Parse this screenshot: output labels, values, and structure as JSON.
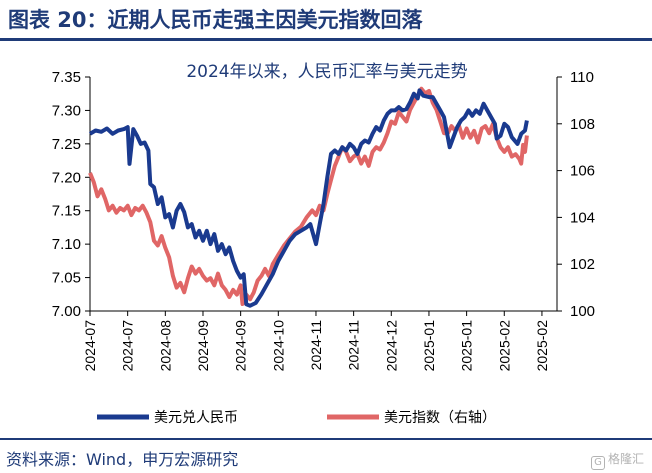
{
  "header": {
    "title": "图表 20：近期人民币走强主因美元指数回落",
    "source": "资料来源：Wind，申万宏源研究",
    "watermark": "格隆汇",
    "watermark_glyph": "G"
  },
  "chart_data": {
    "type": "line",
    "title": "2024年以来，人民币汇率与美元走势",
    "x_tick_labels": [
      "2024-07",
      "2024-07",
      "2024-08",
      "2024-09",
      "2024-09",
      "2024-10",
      "2024-11",
      "2024-11",
      "2024-12",
      "2025-01",
      "2025-01",
      "2025-02",
      "2025-02"
    ],
    "x_range": [
      0,
      12.4
    ],
    "y_left": {
      "range": [
        7.0,
        7.35
      ],
      "ticks": [
        "7.00",
        "7.05",
        "7.10",
        "7.15",
        "7.20",
        "7.25",
        "7.30",
        "7.35"
      ]
    },
    "y_right": {
      "range": [
        100,
        110
      ],
      "ticks": [
        "100",
        "102",
        "104",
        "106",
        "108",
        "110"
      ]
    },
    "grid": false,
    "legend_position": "bottom",
    "series": [
      {
        "name": "美元兑人民币",
        "axis": "left",
        "color": "#1a3a8f",
        "points": [
          [
            0.0,
            7.265
          ],
          [
            0.15,
            7.27
          ],
          [
            0.3,
            7.268
          ],
          [
            0.45,
            7.273
          ],
          [
            0.6,
            7.265
          ],
          [
            0.75,
            7.27
          ],
          [
            0.9,
            7.272
          ],
          [
            1.0,
            7.275
          ],
          [
            1.05,
            7.22
          ],
          [
            1.15,
            7.272
          ],
          [
            1.25,
            7.262
          ],
          [
            1.35,
            7.25
          ],
          [
            1.45,
            7.252
          ],
          [
            1.55,
            7.24
          ],
          [
            1.6,
            7.19
          ],
          [
            1.7,
            7.185
          ],
          [
            1.8,
            7.16
          ],
          [
            1.9,
            7.17
          ],
          [
            2.0,
            7.14
          ],
          [
            2.1,
            7.145
          ],
          [
            2.2,
            7.125
          ],
          [
            2.3,
            7.15
          ],
          [
            2.4,
            7.16
          ],
          [
            2.5,
            7.148
          ],
          [
            2.6,
            7.125
          ],
          [
            2.7,
            7.13
          ],
          [
            2.8,
            7.11
          ],
          [
            2.9,
            7.12
          ],
          [
            3.0,
            7.105
          ],
          [
            3.1,
            7.12
          ],
          [
            3.2,
            7.1
          ],
          [
            3.3,
            7.115
          ],
          [
            3.4,
            7.09
          ],
          [
            3.5,
            7.1
          ],
          [
            3.6,
            7.085
          ],
          [
            3.7,
            7.095
          ],
          [
            3.8,
            7.075
          ],
          [
            3.9,
            7.06
          ],
          [
            4.0,
            7.05
          ],
          [
            4.08,
            7.055
          ],
          [
            4.15,
            7.01
          ],
          [
            4.25,
            7.008
          ],
          [
            4.4,
            7.012
          ],
          [
            4.55,
            7.025
          ],
          [
            4.7,
            7.04
          ],
          [
            4.85,
            7.055
          ],
          [
            5.0,
            7.075
          ],
          [
            5.15,
            7.09
          ],
          [
            5.3,
            7.105
          ],
          [
            5.45,
            7.115
          ],
          [
            5.6,
            7.12
          ],
          [
            5.75,
            7.125
          ],
          [
            5.85,
            7.13
          ],
          [
            5.95,
            7.11
          ],
          [
            6.0,
            7.1
          ],
          [
            6.1,
            7.13
          ],
          [
            6.2,
            7.16
          ],
          [
            6.3,
            7.2
          ],
          [
            6.4,
            7.235
          ],
          [
            6.5,
            7.24
          ],
          [
            6.6,
            7.235
          ],
          [
            6.7,
            7.245
          ],
          [
            6.8,
            7.24
          ],
          [
            6.9,
            7.25
          ],
          [
            7.0,
            7.245
          ],
          [
            7.1,
            7.235
          ],
          [
            7.2,
            7.25
          ],
          [
            7.3,
            7.255
          ],
          [
            7.4,
            7.252
          ],
          [
            7.5,
            7.265
          ],
          [
            7.6,
            7.275
          ],
          [
            7.7,
            7.27
          ],
          [
            7.8,
            7.285
          ],
          [
            7.9,
            7.295
          ],
          [
            8.0,
            7.3
          ],
          [
            8.1,
            7.3
          ],
          [
            8.2,
            7.305
          ],
          [
            8.3,
            7.3
          ],
          [
            8.4,
            7.302
          ],
          [
            8.5,
            7.312
          ],
          [
            8.6,
            7.325
          ],
          [
            8.7,
            7.318
          ],
          [
            8.75,
            7.33
          ],
          [
            8.85,
            7.322
          ],
          [
            9.0,
            7.32
          ],
          [
            9.1,
            7.32
          ],
          [
            9.2,
            7.31
          ],
          [
            9.3,
            7.3
          ],
          [
            9.4,
            7.29
          ],
          [
            9.55,
            7.245
          ],
          [
            9.65,
            7.26
          ],
          [
            9.75,
            7.275
          ],
          [
            9.85,
            7.285
          ],
          [
            9.95,
            7.29
          ],
          [
            10.05,
            7.3
          ],
          [
            10.15,
            7.292
          ],
          [
            10.25,
            7.3
          ],
          [
            10.35,
            7.295
          ],
          [
            10.45,
            7.31
          ],
          [
            10.55,
            7.3
          ],
          [
            10.65,
            7.29
          ],
          [
            10.75,
            7.28
          ],
          [
            10.8,
            7.258
          ],
          [
            10.9,
            7.262
          ],
          [
            11.0,
            7.28
          ],
          [
            11.1,
            7.275
          ],
          [
            11.2,
            7.26
          ],
          [
            11.35,
            7.25
          ],
          [
            11.45,
            7.265
          ],
          [
            11.55,
            7.27
          ],
          [
            11.6,
            7.285
          ]
        ]
      },
      {
        "name": "美元指数（右轴）",
        "axis": "right",
        "color": "#e06666",
        "points": [
          [
            0.0,
            105.9
          ],
          [
            0.1,
            105.5
          ],
          [
            0.2,
            104.9
          ],
          [
            0.3,
            105.2
          ],
          [
            0.4,
            104.8
          ],
          [
            0.5,
            104.3
          ],
          [
            0.6,
            104.5
          ],
          [
            0.7,
            104.2
          ],
          [
            0.8,
            104.4
          ],
          [
            0.9,
            104.3
          ],
          [
            1.0,
            104.5
          ],
          [
            1.1,
            104.1
          ],
          [
            1.2,
            104.4
          ],
          [
            1.3,
            104.3
          ],
          [
            1.4,
            104.5
          ],
          [
            1.5,
            104.2
          ],
          [
            1.6,
            103.8
          ],
          [
            1.7,
            103.0
          ],
          [
            1.8,
            102.8
          ],
          [
            1.9,
            103.2
          ],
          [
            2.0,
            102.7
          ],
          [
            2.1,
            102.3
          ],
          [
            2.2,
            101.5
          ],
          [
            2.3,
            101.0
          ],
          [
            2.4,
            101.2
          ],
          [
            2.5,
            100.8
          ],
          [
            2.6,
            101.4
          ],
          [
            2.7,
            101.9
          ],
          [
            2.8,
            101.6
          ],
          [
            2.9,
            101.8
          ],
          [
            3.0,
            101.5
          ],
          [
            3.1,
            101.3
          ],
          [
            3.2,
            101.4
          ],
          [
            3.3,
            101.1
          ],
          [
            3.4,
            101.6
          ],
          [
            3.5,
            101.1
          ],
          [
            3.6,
            100.9
          ],
          [
            3.7,
            100.6
          ],
          [
            3.8,
            100.9
          ],
          [
            3.9,
            100.7
          ],
          [
            4.0,
            101.1
          ],
          [
            4.05,
            100.3
          ],
          [
            4.15,
            100.7
          ],
          [
            4.25,
            100.5
          ],
          [
            4.35,
            100.8
          ],
          [
            4.45,
            101.3
          ],
          [
            4.55,
            101.5
          ],
          [
            4.65,
            101.8
          ],
          [
            4.75,
            101.5
          ],
          [
            4.85,
            102.0
          ],
          [
            5.0,
            102.4
          ],
          [
            5.15,
            102.8
          ],
          [
            5.3,
            103.1
          ],
          [
            5.45,
            103.4
          ],
          [
            5.6,
            103.6
          ],
          [
            5.75,
            104.0
          ],
          [
            5.9,
            104.3
          ],
          [
            6.0,
            104.1
          ],
          [
            6.1,
            104.5
          ],
          [
            6.2,
            104.3
          ],
          [
            6.3,
            105.0
          ],
          [
            6.4,
            105.6
          ],
          [
            6.5,
            106.2
          ],
          [
            6.6,
            106.6
          ],
          [
            6.7,
            107.0
          ],
          [
            6.8,
            106.8
          ],
          [
            6.9,
            106.4
          ],
          [
            7.0,
            106.6
          ],
          [
            7.1,
            106.7
          ],
          [
            7.2,
            106.3
          ],
          [
            7.3,
            106.6
          ],
          [
            7.4,
            106.2
          ],
          [
            7.5,
            106.8
          ],
          [
            7.6,
            107.0
          ],
          [
            7.7,
            106.9
          ],
          [
            7.8,
            107.2
          ],
          [
            7.9,
            107.6
          ],
          [
            8.0,
            108.1
          ],
          [
            8.1,
            108.0
          ],
          [
            8.2,
            108.5
          ],
          [
            8.3,
            108.3
          ],
          [
            8.4,
            108.1
          ],
          [
            8.5,
            108.6
          ],
          [
            8.6,
            108.9
          ],
          [
            8.7,
            109.2
          ],
          [
            8.8,
            109.5
          ],
          [
            8.9,
            109.3
          ],
          [
            9.0,
            109.4
          ],
          [
            9.1,
            108.9
          ],
          [
            9.2,
            108.6
          ],
          [
            9.3,
            108.1
          ],
          [
            9.4,
            107.6
          ],
          [
            9.5,
            107.6
          ],
          [
            9.6,
            107.9
          ],
          [
            9.7,
            107.7
          ],
          [
            9.8,
            107.9
          ],
          [
            9.9,
            107.4
          ],
          [
            10.0,
            107.8
          ],
          [
            10.1,
            107.4
          ],
          [
            10.2,
            107.7
          ],
          [
            10.3,
            107.2
          ],
          [
            10.4,
            107.8
          ],
          [
            10.5,
            107.9
          ],
          [
            10.6,
            107.6
          ],
          [
            10.7,
            108.0
          ],
          [
            10.8,
            107.4
          ],
          [
            10.9,
            107.0
          ],
          [
            11.0,
            106.8
          ],
          [
            11.1,
            107.0
          ],
          [
            11.2,
            106.6
          ],
          [
            11.3,
            106.7
          ],
          [
            11.4,
            106.5
          ],
          [
            11.45,
            106.3
          ],
          [
            11.5,
            107.1
          ],
          [
            11.55,
            106.8
          ],
          [
            11.6,
            107.5
          ]
        ]
      }
    ]
  }
}
